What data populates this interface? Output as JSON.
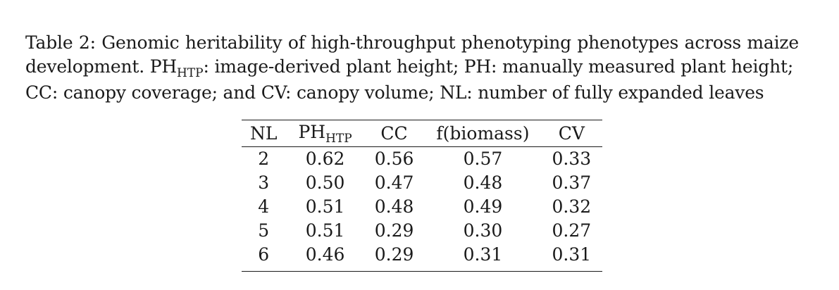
{
  "caption": {
    "lines": [
      "Table 2: Genomic heritability of high-throughput phenotyping phenotypes across maize",
      "development. PH",
      ": image-derived plant height; PH: manually measured plant height;",
      "CC: canopy coverage; and CV: canopy volume; NL: number of fully expanded leaves"
    ],
    "subscript": "HTP"
  },
  "table": {
    "headers": {
      "nl": "NL",
      "ph_base": "PH",
      "ph_sub": "HTP",
      "cc": "CC",
      "biomass": "f(biomass)",
      "cv": "CV"
    },
    "rows": [
      {
        "nl": "2",
        "ph": "0.62",
        "cc": "0.56",
        "biomass": "0.57",
        "cv": "0.33"
      },
      {
        "nl": "3",
        "ph": "0.50",
        "cc": "0.47",
        "biomass": "0.48",
        "cv": "0.37"
      },
      {
        "nl": "4",
        "ph": "0.51",
        "cc": "0.48",
        "biomass": "0.49",
        "cv": "0.32"
      },
      {
        "nl": "5",
        "ph": "0.51",
        "cc": "0.29",
        "biomass": "0.30",
        "cv": "0.27"
      },
      {
        "nl": "6",
        "ph": "0.46",
        "cc": "0.29",
        "biomass": "0.31",
        "cv": "0.31"
      }
    ]
  }
}
